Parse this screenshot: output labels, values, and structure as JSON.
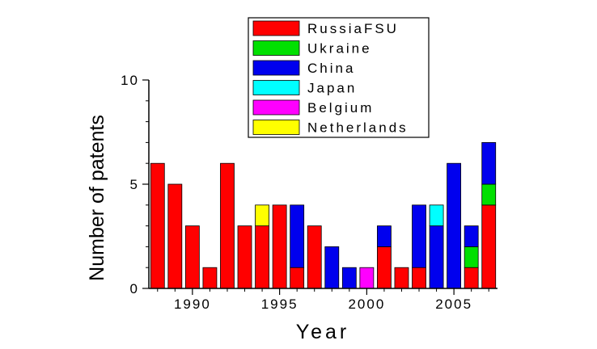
{
  "chart_data": {
    "type": "bar",
    "stacked": true,
    "xlabel": "Year",
    "ylabel": "Number of patents",
    "ylim": [
      0,
      10
    ],
    "xlim": [
      1987.5,
      2007.5
    ],
    "yticks": [
      0,
      5,
      10
    ],
    "xticks": [
      1990,
      1995,
      2000,
      2005
    ],
    "legend_position": "top",
    "x": [
      1988,
      1989,
      1990,
      1991,
      1992,
      1993,
      1994,
      1995,
      1996,
      1997,
      1998,
      1999,
      2000,
      2001,
      2002,
      2003,
      2004,
      2005,
      2006,
      2007
    ],
    "series": [
      {
        "name": "RussiaFSU",
        "color": "#ff0000",
        "values": [
          6,
          5,
          3,
          1,
          6,
          3,
          3,
          4,
          1,
          3,
          0,
          0,
          0,
          2,
          1,
          1,
          0,
          0,
          1,
          4
        ]
      },
      {
        "name": "Ukraine",
        "color": "#00e000",
        "values": [
          0,
          0,
          0,
          0,
          0,
          0,
          0,
          0,
          0,
          0,
          0,
          0,
          0,
          0,
          0,
          0,
          0,
          0,
          1,
          1
        ]
      },
      {
        "name": "China",
        "color": "#0000ee",
        "values": [
          0,
          0,
          0,
          0,
          0,
          0,
          0,
          0,
          3,
          0,
          2,
          1,
          0,
          1,
          0,
          3,
          3,
          6,
          1,
          2
        ]
      },
      {
        "name": "Japan",
        "color": "#00ffff",
        "values": [
          0,
          0,
          0,
          0,
          0,
          0,
          0,
          0,
          0,
          0,
          0,
          0,
          0,
          0,
          0,
          0,
          1,
          0,
          0,
          0
        ]
      },
      {
        "name": "Belgium",
        "color": "#ff00ff",
        "values": [
          0,
          0,
          0,
          0,
          0,
          0,
          0,
          0,
          0,
          0,
          0,
          0,
          1,
          0,
          0,
          0,
          0,
          0,
          0,
          0
        ]
      },
      {
        "name": "Netherlands",
        "color": "#ffff00",
        "values": [
          0,
          0,
          0,
          0,
          0,
          0,
          1,
          0,
          0,
          0,
          0,
          0,
          0,
          0,
          0,
          0,
          0,
          0,
          0,
          0
        ]
      }
    ]
  }
}
